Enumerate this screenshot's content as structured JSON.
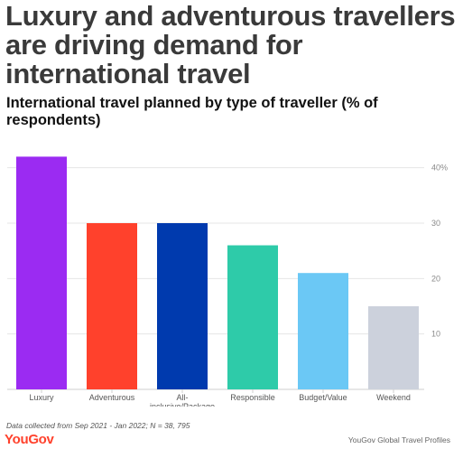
{
  "headline": "Luxury and adventurous travellers are driving demand for international travel",
  "chart_data": {
    "type": "bar",
    "title": "International travel planned by type of traveller (% of respondents)",
    "categories": [
      "Luxury",
      "Adventurous",
      "All-inclusive/Package",
      "Responsible",
      "Budget/Value",
      "Weekend"
    ],
    "category_labels": [
      [
        "Luxury"
      ],
      [
        "Adventurous"
      ],
      [
        "All-",
        "inclusive/Package"
      ],
      [
        "Responsible"
      ],
      [
        "Budget/Value"
      ],
      [
        "Weekend"
      ]
    ],
    "values": [
      42,
      30,
      30,
      26,
      21,
      15
    ],
    "colors": [
      "#9b2bf2",
      "#ff412c",
      "#003aae",
      "#2ecba9",
      "#6bc8f5",
      "#ccd1dc"
    ],
    "ylim": [
      0,
      45
    ],
    "y_ticks": [
      10,
      20,
      30,
      40
    ],
    "y_tick_labels": [
      "10",
      "20",
      "30",
      "40%"
    ],
    "y_axis_side": "right",
    "grid": true,
    "xlabel": "",
    "ylabel": ""
  },
  "footnote": "Data collected from Sep 2021 - Jan 2022; N = 38, 795",
  "brand": "YouGov",
  "source": "YouGov Global Travel Profiles"
}
